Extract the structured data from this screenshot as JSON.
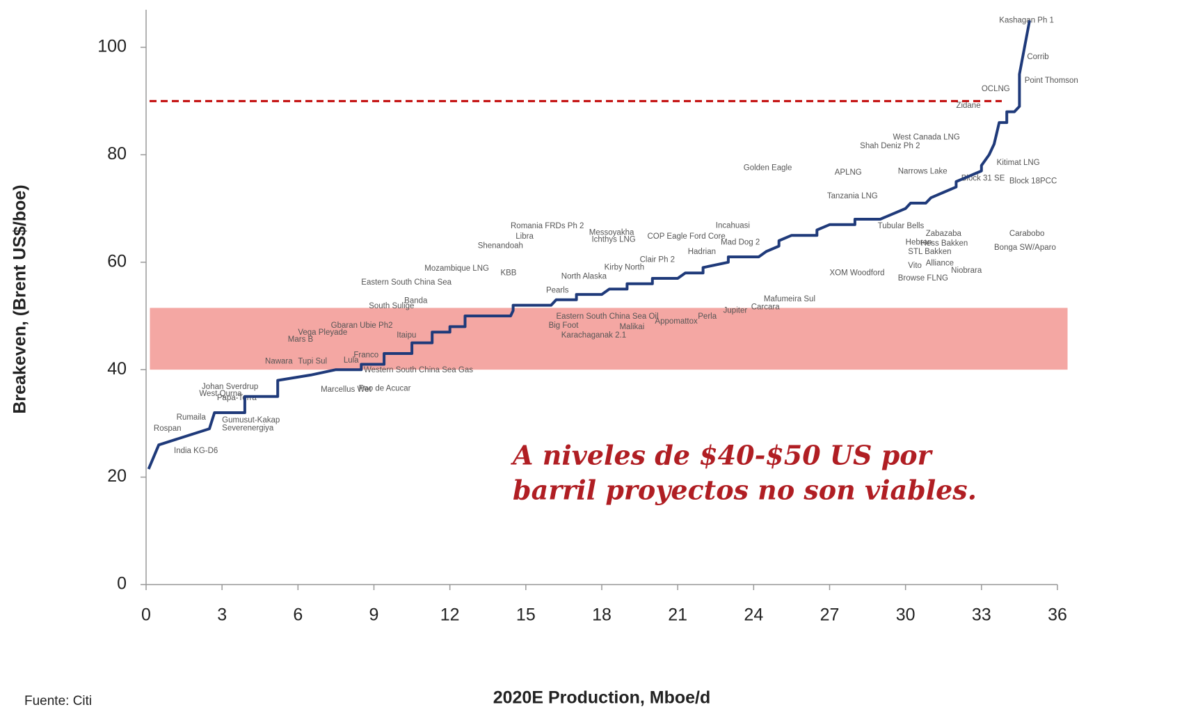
{
  "chart_data": {
    "type": "line",
    "xlabel": "2020E Production, Mboe/d",
    "ylabel": "Breakeven, (Brent US$/boe)",
    "xlim": [
      0,
      36
    ],
    "ylim": [
      0,
      107
    ],
    "xticks": [
      0,
      3,
      6,
      9,
      12,
      15,
      18,
      21,
      24,
      27,
      30,
      33,
      36
    ],
    "yticks": [
      0,
      20,
      40,
      60,
      80,
      100
    ],
    "color": "#1f3a7a",
    "x": [
      0.1,
      0.5,
      2.5,
      2.7,
      3.9,
      3.9,
      5.2,
      5.2,
      6.5,
      7.5,
      8.5,
      8.5,
      9.4,
      9.4,
      10.5,
      10.5,
      11.3,
      11.3,
      12,
      12,
      12.6,
      12.6,
      14.4,
      14.5,
      14.5,
      16,
      16.2,
      17,
      17,
      18,
      18.3,
      19,
      19,
      20,
      20,
      21,
      21.3,
      22,
      22,
      23,
      23,
      24.2,
      24.5,
      25,
      25,
      25.5,
      26.5,
      26.5,
      27,
      28,
      28,
      29,
      29.5,
      30,
      30.2,
      30.8,
      31,
      31.5,
      32,
      32,
      32.5,
      33,
      33,
      33.3,
      33.5,
      33.6,
      33.7,
      34,
      34,
      34.3,
      34.5,
      34.5,
      34.7,
      34.9
    ],
    "values": [
      21.5,
      26,
      29,
      32,
      32,
      35,
      35,
      38,
      39,
      40,
      40,
      41,
      41,
      43,
      43,
      45,
      45,
      47,
      47,
      48,
      48,
      50,
      50,
      51,
      52,
      52,
      53,
      53,
      54,
      54,
      55,
      55,
      56,
      56,
      57,
      57,
      58,
      58,
      59,
      60,
      61,
      61,
      62,
      63,
      64,
      65,
      65,
      66,
      67,
      67,
      68,
      68,
      69,
      70,
      71,
      71,
      72,
      73,
      74,
      75,
      76,
      77,
      78,
      80,
      82,
      84,
      86,
      86,
      88,
      88,
      89,
      95,
      100,
      105
    ],
    "reference_line": {
      "y": 90,
      "color": "#c00000"
    },
    "band": {
      "x": [
        0.15,
        36.4
      ],
      "y": [
        40,
        51.5
      ],
      "color": "#f08a84"
    },
    "annotation": {
      "lines": [
        "A niveles de $40-$50 US por",
        "barril  proyectos no son viables."
      ],
      "color": "#b01e23"
    },
    "labels": [
      {
        "text": "Kashagan Ph 1",
        "x": 33.7,
        "y": 105
      },
      {
        "text": "Corrib",
        "x": 34.8,
        "y": 98.2
      },
      {
        "text": "Point Thomson",
        "x": 34.7,
        "y": 93.8
      },
      {
        "text": "OCLNG",
        "x": 33,
        "y": 92.2
      },
      {
        "text": "Zidane",
        "x": 32,
        "y": 89.1
      },
      {
        "text": "West Canada LNG",
        "x": 29.5,
        "y": 83.2
      },
      {
        "text": "Shah Deniz Ph 2",
        "x": 28.2,
        "y": 81.6
      },
      {
        "text": "Kitimat LNG",
        "x": 33.6,
        "y": 78.5
      },
      {
        "text": "Golden Eagle",
        "x": 23.6,
        "y": 77.5
      },
      {
        "text": "APLNG",
        "x": 27.2,
        "y": 76.7
      },
      {
        "text": "Narrows Lake",
        "x": 29.7,
        "y": 76.9
      },
      {
        "text": "Block 31 SE",
        "x": 32.2,
        "y": 75.6
      },
      {
        "text": "Block 18PCC",
        "x": 34.1,
        "y": 75.1
      },
      {
        "text": "Tanzania LNG",
        "x": 26.9,
        "y": 72.3
      },
      {
        "text": "Incahuasi",
        "x": 22.5,
        "y": 66.8
      },
      {
        "text": "Tubular Bells",
        "x": 28.9,
        "y": 66.7
      },
      {
        "text": "Romania FRDs Ph 2",
        "x": 14.4,
        "y": 66.7
      },
      {
        "text": "Messoyakha",
        "x": 17.5,
        "y": 65.5
      },
      {
        "text": "Zabazaba",
        "x": 30.8,
        "y": 65.3
      },
      {
        "text": "Carabobo",
        "x": 34.1,
        "y": 65.3
      },
      {
        "text": "Libra",
        "x": 14.6,
        "y": 64.8
      },
      {
        "text": "COP Eagle Ford Core",
        "x": 19.8,
        "y": 64.8
      },
      {
        "text": "Ichthys LNG",
        "x": 17.6,
        "y": 64.2
      },
      {
        "text": "Mad Dog 2",
        "x": 22.7,
        "y": 63.7
      },
      {
        "text": "Hebron",
        "x": 30,
        "y": 63.7
      },
      {
        "text": "Hess Bakken",
        "x": 30.6,
        "y": 63.5
      },
      {
        "text": "Shenandoah",
        "x": 13.1,
        "y": 63
      },
      {
        "text": "Bonga SW/Aparo",
        "x": 33.5,
        "y": 62.7
      },
      {
        "text": "Hadrian",
        "x": 21.4,
        "y": 61.9
      },
      {
        "text": "STL Bakken",
        "x": 30.1,
        "y": 61.9
      },
      {
        "text": "Clair Ph 2",
        "x": 19.5,
        "y": 60.4
      },
      {
        "text": "Alliance",
        "x": 30.8,
        "y": 59.8
      },
      {
        "text": "Vito",
        "x": 30.1,
        "y": 59.3
      },
      {
        "text": "Kirby North",
        "x": 18.1,
        "y": 59
      },
      {
        "text": "Mozambique LNG",
        "x": 11,
        "y": 58.8
      },
      {
        "text": "Niobrara",
        "x": 31.8,
        "y": 58.4
      },
      {
        "text": "KBB",
        "x": 14,
        "y": 58
      },
      {
        "text": "XOM Woodford",
        "x": 27,
        "y": 58
      },
      {
        "text": "North Alaska",
        "x": 16.4,
        "y": 57.3
      },
      {
        "text": "Browse FLNG",
        "x": 29.7,
        "y": 57
      },
      {
        "text": "Eastern South China Sea",
        "x": 8.5,
        "y": 56.2
      },
      {
        "text": "Pearls",
        "x": 15.8,
        "y": 54.7
      },
      {
        "text": "Mafumeira Sul",
        "x": 24.4,
        "y": 53.1
      },
      {
        "text": "Banda",
        "x": 10.2,
        "y": 52.8
      },
      {
        "text": "South Sulige",
        "x": 8.8,
        "y": 51.8
      },
      {
        "text": "Carcara",
        "x": 23.9,
        "y": 51.6
      },
      {
        "text": "Jupiter",
        "x": 22.8,
        "y": 51
      },
      {
        "text": "Perla",
        "x": 21.8,
        "y": 49.9
      },
      {
        "text": "Eastern South China Sea Oil",
        "x": 16.2,
        "y": 49.9
      },
      {
        "text": "Appomattox",
        "x": 20.1,
        "y": 49
      },
      {
        "text": "Big Foot",
        "x": 15.9,
        "y": 48.2
      },
      {
        "text": "Gbaran Ubie Ph2",
        "x": 7.3,
        "y": 48.2
      },
      {
        "text": "Malikai",
        "x": 18.7,
        "y": 47.9
      },
      {
        "text": "Vega Pleyade",
        "x": 6,
        "y": 46.9
      },
      {
        "text": "Karachaganak 2.1",
        "x": 16.4,
        "y": 46.4
      },
      {
        "text": "Itaipu",
        "x": 9.9,
        "y": 46.4
      },
      {
        "text": "Mars B",
        "x": 5.6,
        "y": 45.6
      },
      {
        "text": "Franco",
        "x": 8.2,
        "y": 42.7
      },
      {
        "text": "Lula",
        "x": 7.8,
        "y": 41.7
      },
      {
        "text": "Nawara",
        "x": 4.7,
        "y": 41.5
      },
      {
        "text": "Tupi Sul",
        "x": 6,
        "y": 41.5
      },
      {
        "text": "Western South China Sea Gas",
        "x": 8.6,
        "y": 39.9
      },
      {
        "text": "Johan Sverdrup",
        "x": 2.2,
        "y": 36.8
      },
      {
        "text": "Pao de Acucar",
        "x": 8.4,
        "y": 36.5
      },
      {
        "text": "Marcellus Wet",
        "x": 6.9,
        "y": 36.3
      },
      {
        "text": "West Qurna",
        "x": 2.1,
        "y": 35.5
      },
      {
        "text": "Papa-Terra",
        "x": 2.8,
        "y": 34.7
      },
      {
        "text": "Rumaila",
        "x": 1.2,
        "y": 31.1
      },
      {
        "text": "Gumusut-Kakap",
        "x": 3,
        "y": 30.6
      },
      {
        "text": "Severenergiya",
        "x": 3,
        "y": 29.1
      },
      {
        "text": "Rospan",
        "x": 0.3,
        "y": 29
      },
      {
        "text": "India KG-D6",
        "x": 1.1,
        "y": 24.9
      }
    ]
  },
  "source": "Fuente: Citi"
}
